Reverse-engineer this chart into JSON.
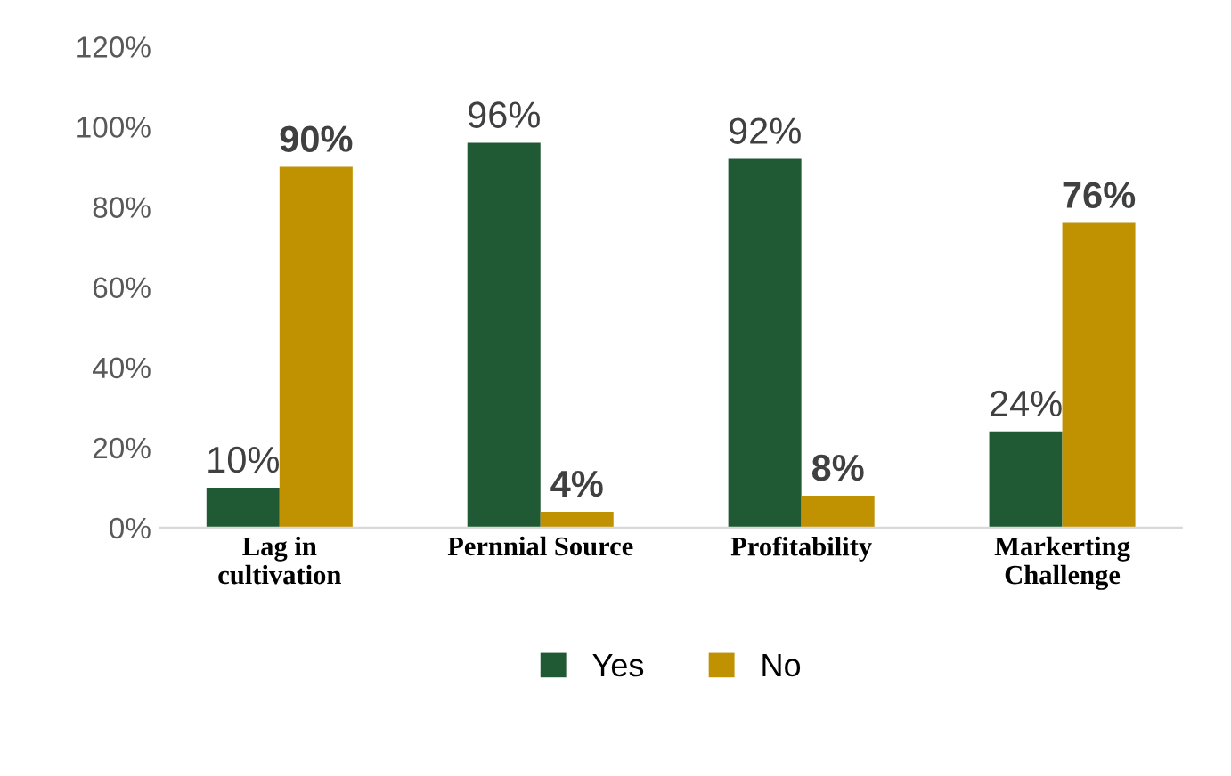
{
  "chart_data": {
    "type": "bar",
    "categories": [
      "Lag in\ncultivation",
      "Pernnial Source",
      "Profitability",
      "Markerting\nChallenge"
    ],
    "series": [
      {
        "name": "Yes",
        "color": "#1f5a34",
        "values": [
          10,
          96,
          92,
          24
        ],
        "value_labels": [
          "10%",
          "96%",
          "92%",
          "24%"
        ]
      },
      {
        "name": "No",
        "color": "#c09100",
        "values": [
          90,
          4,
          8,
          76
        ],
        "value_labels": [
          "90%",
          "4%",
          "8%",
          "76%"
        ]
      }
    ],
    "ylim": [
      0,
      120
    ],
    "yticks": [
      {
        "value": 0,
        "label": "0%"
      },
      {
        "value": 20,
        "label": "20%"
      },
      {
        "value": 40,
        "label": "40%"
      },
      {
        "value": 60,
        "label": "60%"
      },
      {
        "value": 80,
        "label": "80%"
      },
      {
        "value": 100,
        "label": "100%"
      },
      {
        "value": 120,
        "label": "120%"
      }
    ],
    "grid": false,
    "legend": "bottom"
  }
}
